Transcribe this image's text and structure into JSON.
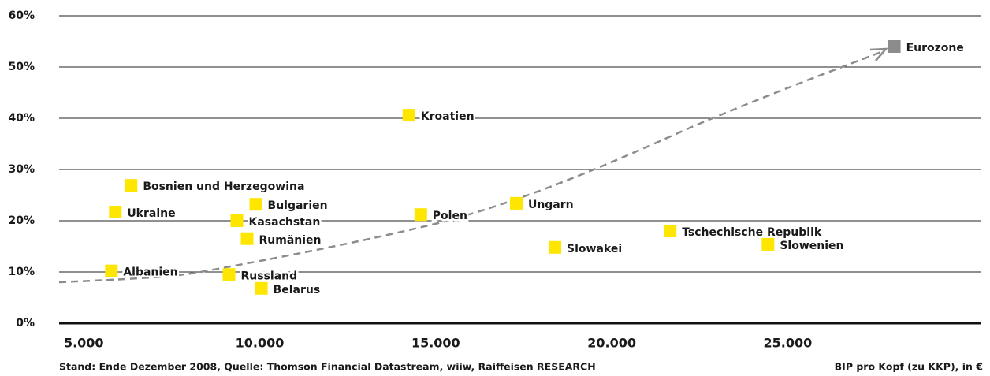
{
  "chart_data": {
    "type": "scatter",
    "labels": [
      "Albanien",
      "Ukraine",
      "Bosnien und Herzegowina",
      "Bulgarien",
      "Kasachstan",
      "Rumänien",
      "Russland",
      "Belarus",
      "Kroatien",
      "Polen",
      "Ungarn",
      "Slowakei",
      "Tschechische Republik",
      "Slowenien",
      "Eurozone"
    ],
    "x": [
      5785,
      5897,
      6345,
      9888,
      9350,
      9641,
      9126,
      10045,
      14238,
      14574,
      17287,
      18386,
      21659,
      24439,
      28027
    ],
    "values": [
      10.2,
      21.7,
      26.9,
      23.2,
      20.0,
      16.5,
      9.5,
      6.8,
      40.6,
      21.2,
      23.4,
      14.8,
      18.0,
      15.4,
      54.0
    ],
    "colors": [
      "#ffe600",
      "#ffe600",
      "#ffe600",
      "#ffe600",
      "#ffe600",
      "#ffe600",
      "#ffe600",
      "#ffe600",
      "#ffe600",
      "#ffe600",
      "#ffe600",
      "#ffe600",
      "#ffe600",
      "#ffe600",
      "#8c8c8c"
    ],
    "xlim": [
      4300,
      30500
    ],
    "ylim": [
      0,
      60
    ],
    "xticks": [
      {
        "value": 5000,
        "label": "5.000"
      },
      {
        "value": 10000,
        "label": "10.000"
      },
      {
        "value": 15000,
        "label": "15.000"
      },
      {
        "value": 20000,
        "label": "20.000"
      },
      {
        "value": 25000,
        "label": "25.000"
      }
    ],
    "yticks": [
      {
        "value": 0,
        "label": "0%"
      },
      {
        "value": 10,
        "label": "10%"
      },
      {
        "value": 20,
        "label": "20%"
      },
      {
        "value": 30,
        "label": "30%"
      },
      {
        "value": 40,
        "label": "40%"
      },
      {
        "value": 50,
        "label": "50%"
      },
      {
        "value": 60,
        "label": "60%"
      }
    ],
    "grid": true,
    "source": "Stand: Ende Dezember 2008, Quelle: Thomson Financial Datastream, wiiw, Raiffeisen RESEARCH",
    "x_label": "BIP pro Kopf (zu KKP), in €"
  }
}
